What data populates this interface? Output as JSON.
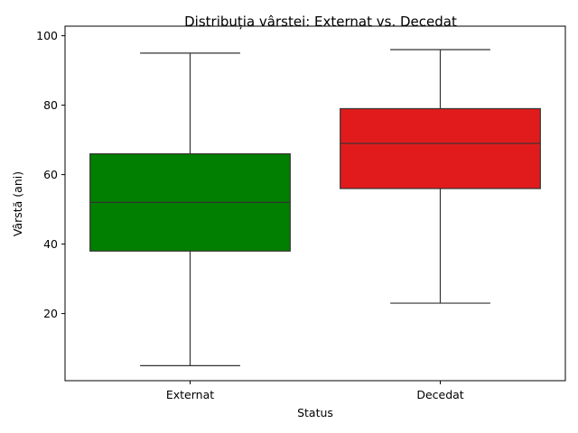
{
  "chart_data": {
    "type": "box",
    "title": "Distribuția vârstei: Externat vs. Decedat",
    "xlabel": "Status",
    "ylabel": "Vârstă (ani)",
    "categories": [
      "Externat",
      "Decedat"
    ],
    "ylim": [
      0,
      100
    ],
    "yticks": [
      20,
      40,
      60,
      80,
      100
    ],
    "grid": false,
    "legend": "none",
    "boxes": [
      {
        "category": "Externat",
        "min": 5,
        "q1": 38,
        "median": 52,
        "q3": 66,
        "max": 95,
        "color": "#007f00"
      },
      {
        "category": "Decedat",
        "min": 23,
        "q1": 56,
        "median": 69,
        "q3": 79,
        "max": 96,
        "color": "#e11b1b"
      }
    ]
  }
}
